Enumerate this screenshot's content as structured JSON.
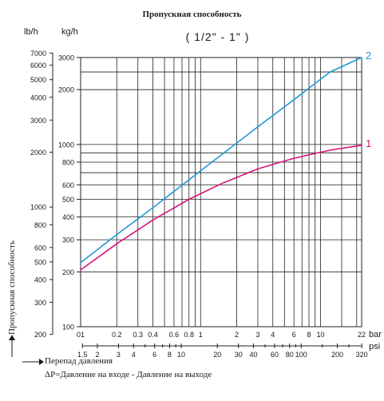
{
  "chart_data": {
    "type": "line",
    "title": "Пропускная способность",
    "subtitle": "( 1/2\" - 1\" )",
    "ylabel": "Пропускная способность",
    "y_units": [
      "lb/h",
      "kg/h"
    ],
    "x_units": [
      "bar",
      "psi"
    ],
    "x_scale": "log",
    "y_scale": "log",
    "grid": true,
    "xlim_bar": [
      0.1,
      22
    ],
    "ylim_kgh": [
      100,
      3000
    ],
    "bar_ticks": [
      {
        "v": 0.1,
        "label": "01"
      },
      {
        "v": 0.2,
        "label": "0.2"
      },
      {
        "v": 0.3,
        "label": "0.3"
      },
      {
        "v": 0.4,
        "label": "0.4"
      },
      {
        "v": 0.6,
        "label": "0.6"
      },
      {
        "v": 0.8,
        "label": "0.8"
      },
      {
        "v": 1,
        "label": "1"
      },
      {
        "v": 2,
        "label": "2"
      },
      {
        "v": 3,
        "label": "3"
      },
      {
        "v": 4,
        "label": "4"
      },
      {
        "v": 6,
        "label": "6"
      },
      {
        "v": 8,
        "label": "8"
      },
      {
        "v": 10,
        "label": "10"
      },
      {
        "v": 22,
        "label": "22"
      }
    ],
    "bar_gridlines": [
      0.1,
      0.2,
      0.3,
      0.4,
      0.5,
      0.6,
      0.7,
      0.8,
      0.9,
      1,
      2,
      3,
      4,
      5,
      6,
      7,
      8,
      9,
      10,
      15,
      20,
      22
    ],
    "psi_ticks": [
      {
        "v": 1.5,
        "label": "1.5"
      },
      {
        "v": 2,
        "label": "2"
      },
      {
        "v": 3,
        "label": "3"
      },
      {
        "v": 4,
        "label": "4"
      },
      {
        "v": 6,
        "label": "6"
      },
      {
        "v": 8,
        "label": "8"
      },
      {
        "v": 10,
        "label": "10"
      },
      {
        "v": 20,
        "label": "20"
      },
      {
        "v": 30,
        "label": "30"
      },
      {
        "v": 40,
        "label": "40"
      },
      {
        "v": 60,
        "label": "60"
      },
      {
        "v": 80,
        "label": "80"
      },
      {
        "v": 100,
        "label": "100"
      },
      {
        "v": 200,
        "label": "200"
      },
      {
        "v": 320,
        "label": "320"
      }
    ],
    "psi_minor": [
      5,
      7,
      9,
      50,
      70,
      90,
      150,
      250
    ],
    "kgh_ticks": [
      {
        "v": 100,
        "label": "100"
      },
      {
        "v": 200,
        "label": "200"
      },
      {
        "v": 300,
        "label": "300"
      },
      {
        "v": 400,
        "label": "400"
      },
      {
        "v": 500,
        "label": "500"
      },
      {
        "v": 600,
        "label": "600"
      },
      {
        "v": 800,
        "label": "800"
      },
      {
        "v": 1000,
        "label": "1000"
      },
      {
        "v": 2000,
        "label": "2000"
      },
      {
        "v": 3000,
        "label": "3000"
      }
    ],
    "kgh_gridlines": [
      100,
      200,
      300,
      400,
      500,
      600,
      700,
      800,
      900,
      1000,
      2000,
      2500,
      3000
    ],
    "lbh_ticks": [
      {
        "v": 200,
        "label": "200"
      },
      {
        "v": 300,
        "label": "300"
      },
      {
        "v": 400,
        "label": "400"
      },
      {
        "v": 500,
        "label": "500"
      },
      {
        "v": 600,
        "label": "600"
      },
      {
        "v": 800,
        "label": "800"
      },
      {
        "v": 1000,
        "label": "1000"
      },
      {
        "v": 2000,
        "label": "2000"
      },
      {
        "v": 3000,
        "label": "3000"
      },
      {
        "v": 4000,
        "label": "4000"
      },
      {
        "v": 5000,
        "label": "5000"
      },
      {
        "v": 6000,
        "label": "6000"
      },
      {
        "v": 7000,
        "label": "7000"
      }
    ],
    "series": [
      {
        "name": "1",
        "color": "#d6147c",
        "x": [
          0.1,
          0.2,
          0.4,
          0.8,
          1.5,
          3,
          6,
          12,
          22
        ],
        "y": [
          205,
          285,
          385,
          500,
          610,
          735,
          840,
          930,
          990
        ]
      },
      {
        "name": "2",
        "color": "#1e9ad6",
        "x": [
          0.1,
          0.2,
          0.4,
          0.8,
          1.5,
          3,
          6,
          12,
          22
        ],
        "y": [
          225,
          320,
          450,
          640,
          880,
          1250,
          1760,
          2500,
          3000
        ]
      }
    ]
  },
  "labels": {
    "unit_lb": "lb/h",
    "unit_kg": "kg/h",
    "bar": "bar",
    "psi": "psi",
    "note_arrow_text": "Перепад давления",
    "note_formula": "ΔP=Давление на входе - Давление на выходе"
  },
  "colors": {
    "grid": "#222222",
    "text": "#1a1a1a"
  }
}
